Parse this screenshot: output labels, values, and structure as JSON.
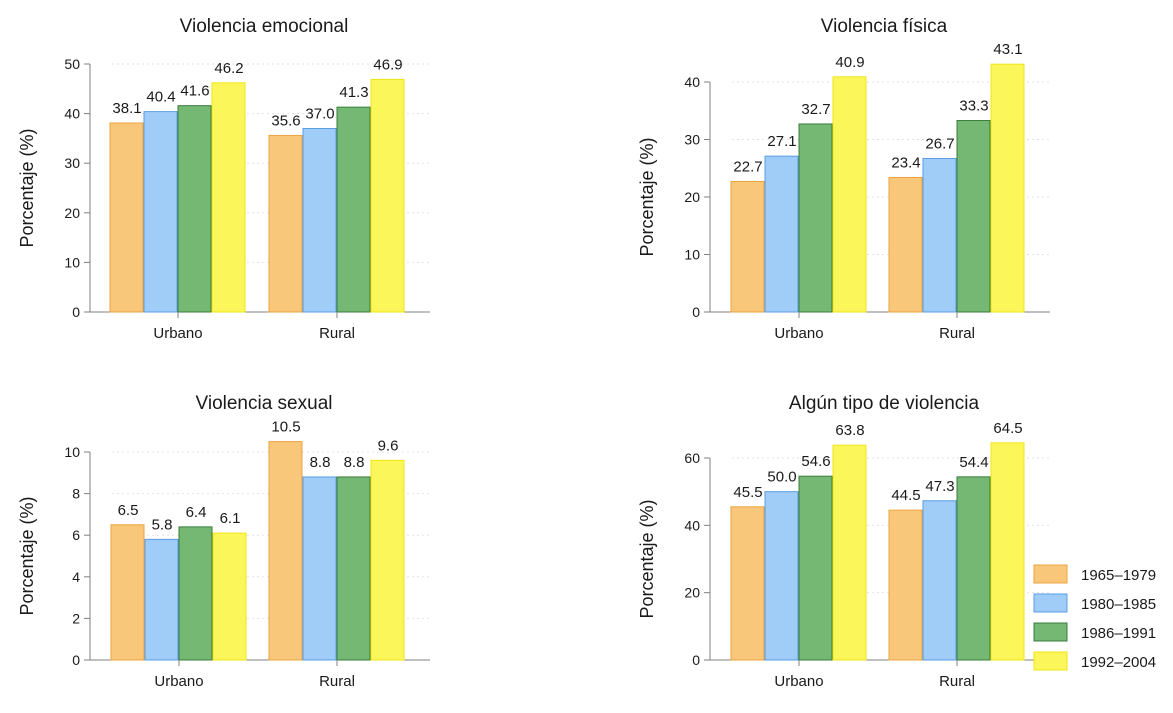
{
  "chart_data": [
    {
      "type": "bar",
      "title": "Violencia emocional",
      "ylabel": "Porcentaje (%)",
      "xlabel": "",
      "ylim": [
        0,
        50
      ],
      "yticks": [
        0,
        10,
        20,
        30,
        40,
        50
      ],
      "categories": [
        "Urbano",
        "Rural"
      ],
      "series": [
        {
          "name": "1965–1979",
          "values": [
            38.1,
            35.6
          ]
        },
        {
          "name": "1980–1985",
          "values": [
            40.4,
            37.0
          ]
        },
        {
          "name": "1986–1991",
          "values": [
            41.6,
            41.3
          ]
        },
        {
          "name": "1992–2004",
          "values": [
            46.2,
            46.9
          ]
        }
      ],
      "data_labels": [
        [
          "38.1",
          "35.6"
        ],
        [
          "40.4",
          "37.0"
        ],
        [
          "41.6",
          "41.3"
        ],
        [
          "46.2",
          "46.9"
        ]
      ],
      "grid": true
    },
    {
      "type": "bar",
      "title": "Violencia física",
      "ylabel": "Porcentaje (%)",
      "xlabel": "",
      "ylim": [
        0,
        44
      ],
      "yticks": [
        0,
        10,
        20,
        30,
        40
      ],
      "categories": [
        "Urbano",
        "Rural"
      ],
      "series": [
        {
          "name": "1965–1979",
          "values": [
            22.7,
            23.4
          ]
        },
        {
          "name": "1980–1985",
          "values": [
            27.1,
            26.7
          ]
        },
        {
          "name": "1986–1991",
          "values": [
            32.7,
            33.3
          ]
        },
        {
          "name": "1992–2004",
          "values": [
            40.9,
            43.1
          ]
        }
      ],
      "data_labels": [
        [
          "22.7",
          "23.4"
        ],
        [
          "27.1",
          "26.7"
        ],
        [
          "32.7",
          "33.3"
        ],
        [
          "40.9",
          "43.1"
        ]
      ],
      "grid": true
    },
    {
      "type": "bar",
      "title": "Violencia sexual",
      "ylabel": "Porcentaje (%)",
      "xlabel": "",
      "ylim": [
        0,
        10.5
      ],
      "yticks": [
        0,
        2,
        4,
        6,
        8,
        10
      ],
      "categories": [
        "Urbano",
        "Rural"
      ],
      "series": [
        {
          "name": "1965–1979",
          "values": [
            6.5,
            10.5
          ]
        },
        {
          "name": "1980–1985",
          "values": [
            5.8,
            8.8
          ]
        },
        {
          "name": "1986–1991",
          "values": [
            6.4,
            8.8
          ]
        },
        {
          "name": "1992–2004",
          "values": [
            6.1,
            9.6
          ]
        }
      ],
      "data_labels": [
        [
          "6.5",
          "10.5"
        ],
        [
          "5.8",
          "8.8"
        ],
        [
          "6.4",
          "8.8"
        ],
        [
          "6.1",
          "9.6"
        ]
      ],
      "grid": true
    },
    {
      "type": "bar",
      "title": "Algún tipo de violencia",
      "ylabel": "Porcentaje (%)",
      "xlabel": "",
      "ylim": [
        0,
        66
      ],
      "yticks": [
        0,
        20,
        40,
        60
      ],
      "categories": [
        "Urbano",
        "Rural"
      ],
      "series": [
        {
          "name": "1965–1979",
          "values": [
            45.5,
            44.5
          ]
        },
        {
          "name": "1980–1985",
          "values": [
            50.0,
            47.3
          ]
        },
        {
          "name": "1986–1991",
          "values": [
            54.6,
            54.4
          ]
        },
        {
          "name": "1992–2004",
          "values": [
            63.8,
            64.5
          ]
        }
      ],
      "data_labels": [
        [
          "45.5",
          "44.5"
        ],
        [
          "50.0",
          "47.3"
        ],
        [
          "54.6",
          "54.4"
        ],
        [
          "63.8",
          "64.5"
        ]
      ],
      "grid": true
    }
  ],
  "legend": {
    "placement": "bottom-right",
    "items": [
      {
        "label": "1965–1979",
        "fill": "#f9c77a",
        "stroke": "#eba341"
      },
      {
        "label": "1980–1985",
        "fill": "#9fcdf8",
        "stroke": "#5a9de3"
      },
      {
        "label": "1986–1991",
        "fill": "#74b873",
        "stroke": "#3a7c3d"
      },
      {
        "label": "1992–2004",
        "fill": "#fbf65a",
        "stroke": "#f2e414"
      }
    ]
  },
  "colors": {
    "axis": "#808080",
    "text": "#1a1a1a",
    "grid": "#e3e3e3"
  }
}
